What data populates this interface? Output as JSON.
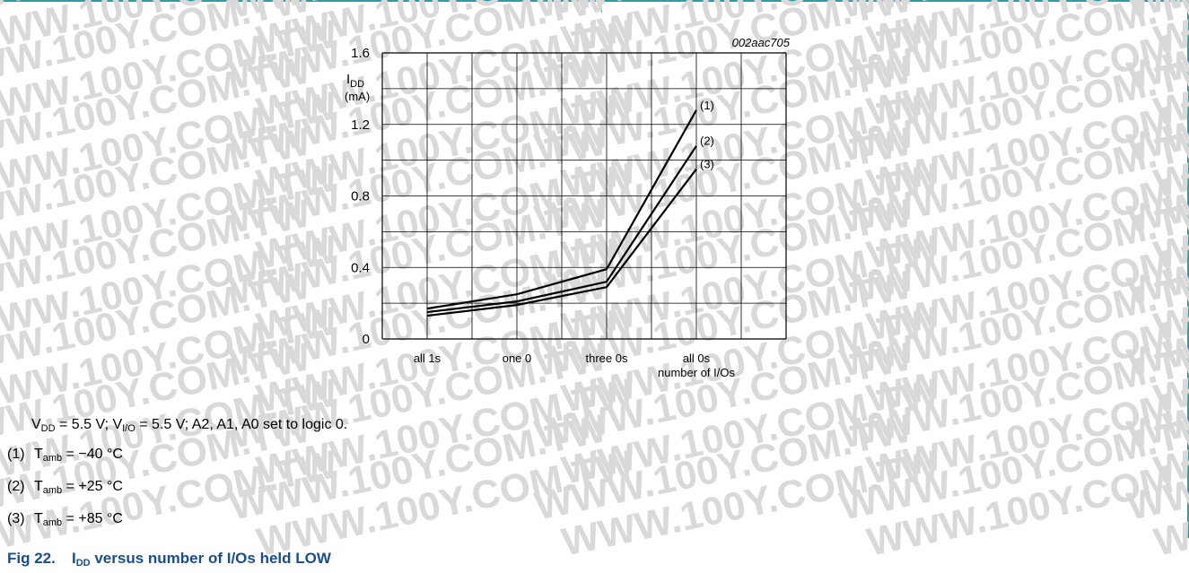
{
  "figure_code": "002aac705",
  "y_axis_symbol_main": "I",
  "y_axis_symbol_sub": "DD",
  "y_axis_unit": "(mA)",
  "chart_data": {
    "type": "line",
    "title": "",
    "xlabel": "number of I/Os",
    "ylabel": "IDD (mA)",
    "categories": [
      "all 1s",
      "one 0",
      "three 0s",
      "all 0s"
    ],
    "yticks": [
      "0",
      "0.4",
      "0.8",
      "1.2",
      "1.6"
    ],
    "ylim": [
      0,
      1.6
    ],
    "grid": true,
    "series": [
      {
        "name": "(1)",
        "values": [
          0.17,
          0.25,
          0.39,
          1.28
        ]
      },
      {
        "name": "(2)",
        "values": [
          0.15,
          0.21,
          0.32,
          1.08
        ]
      },
      {
        "name": "(3)",
        "values": [
          0.13,
          0.19,
          0.29,
          0.95
        ]
      }
    ]
  },
  "conditions": {
    "v1": "V",
    "v1_sub": "DD",
    "v1_rest": " = 5.5 V; V",
    "v2_sub": "I/O",
    "v2_rest": " = 5.5 V; A2, A1, A0 set to logic 0."
  },
  "legend": [
    {
      "num": "(1)",
      "t": "T",
      "sub": "amb",
      "rest": " = −40 °C"
    },
    {
      "num": "(2)",
      "t": "T",
      "sub": "amb",
      "rest": " = +25 °C"
    },
    {
      "num": "(3)",
      "t": "T",
      "sub": "amb",
      "rest": " = +85 °C"
    }
  ],
  "caption": {
    "fig": "Fig 22.",
    "main": "I",
    "sub": "DD",
    "rest": " versus number of I/Os held LOW"
  },
  "watermark_text": "WWW.100Y.COM.TW",
  "colors": {
    "frame": "#2a9fa8",
    "caption": "#1a4e8c",
    "grid": "#000000"
  }
}
